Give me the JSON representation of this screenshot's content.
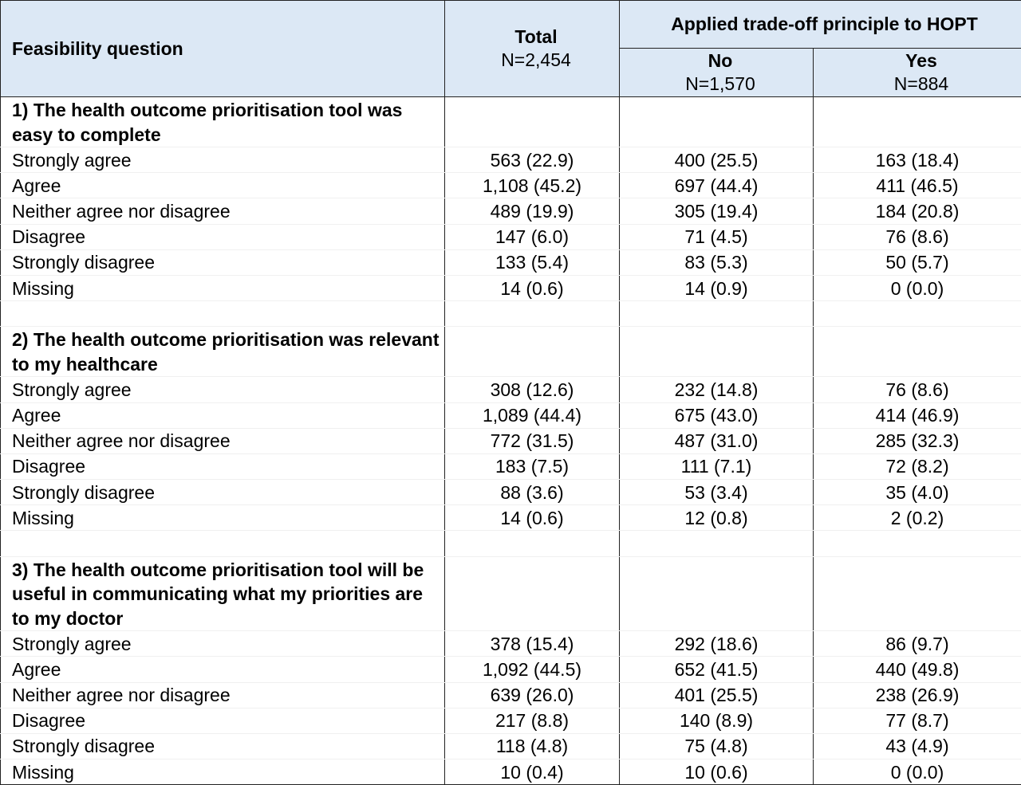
{
  "header": {
    "col1": "Feasibility question",
    "total_label": "Total",
    "total_n": "N=2,454",
    "group_label": "Applied trade-off principle to HOPT",
    "no_label": "No",
    "no_n": "N=1,570",
    "yes_label": "Yes",
    "yes_n": "N=884"
  },
  "questions": [
    {
      "title": "1) The health outcome prioritisation tool was easy to complete",
      "rows": [
        {
          "label": "Strongly agree",
          "total": "563 (22.9)",
          "no": "400 (25.5)",
          "yes": "163 (18.4)"
        },
        {
          "label": "Agree",
          "total": "1,108 (45.2)",
          "no": "697 (44.4)",
          "yes": "411 (46.5)"
        },
        {
          "label": "Neither agree nor disagree",
          "total": "489 (19.9)",
          "no": "305 (19.4)",
          "yes": "184 (20.8)"
        },
        {
          "label": "Disagree",
          "total": "147 (6.0)",
          "no": "71 (4.5)",
          "yes": "76 (8.6)"
        },
        {
          "label": "Strongly disagree",
          "total": "133 (5.4)",
          "no": "83 (5.3)",
          "yes": "50 (5.7)"
        },
        {
          "label": "Missing",
          "total": "14 (0.6)",
          "no": "14 (0.9)",
          "yes": "0 (0.0)"
        }
      ]
    },
    {
      "title": "2) The health outcome prioritisation was relevant to my healthcare",
      "rows": [
        {
          "label": "Strongly agree",
          "total": "308 (12.6)",
          "no": "232 (14.8)",
          "yes": "76 (8.6)"
        },
        {
          "label": "Agree",
          "total": "1,089 (44.4)",
          "no": "675 (43.0)",
          "yes": "414 (46.9)"
        },
        {
          "label": "Neither agree nor disagree",
          "total": "772 (31.5)",
          "no": "487 (31.0)",
          "yes": "285 (32.3)"
        },
        {
          "label": "Disagree",
          "total": "183 (7.5)",
          "no": "111 (7.1)",
          "yes": "72 (8.2)"
        },
        {
          "label": "Strongly disagree",
          "total": "88 (3.6)",
          "no": "53 (3.4)",
          "yes": "35 (4.0)"
        },
        {
          "label": "Missing",
          "total": "14 (0.6)",
          "no": "12 (0.8)",
          "yes": "2 (0.2)"
        }
      ]
    },
    {
      "title": "3) The health outcome prioritisation tool will be useful in communicating what my priorities are to my doctor",
      "rows": [
        {
          "label": "Strongly agree",
          "total": "378 (15.4)",
          "no": "292 (18.6)",
          "yes": "86 (9.7)"
        },
        {
          "label": "Agree",
          "total": "1,092 (44.5)",
          "no": "652 (41.5)",
          "yes": "440 (49.8)"
        },
        {
          "label": "Neither agree nor disagree",
          "total": "639 (26.0)",
          "no": "401 (25.5)",
          "yes": "238 (26.9)"
        },
        {
          "label": "Disagree",
          "total": "217 (8.8)",
          "no": "140 (8.9)",
          "yes": "77 (8.7)"
        },
        {
          "label": "Strongly disagree",
          "total": "118 (4.8)",
          "no": "75 (4.8)",
          "yes": "43 (4.9)"
        },
        {
          "label": "Missing",
          "total": "10 (0.4)",
          "no": "10 (0.6)",
          "yes": "0 (0.0)"
        }
      ]
    }
  ]
}
